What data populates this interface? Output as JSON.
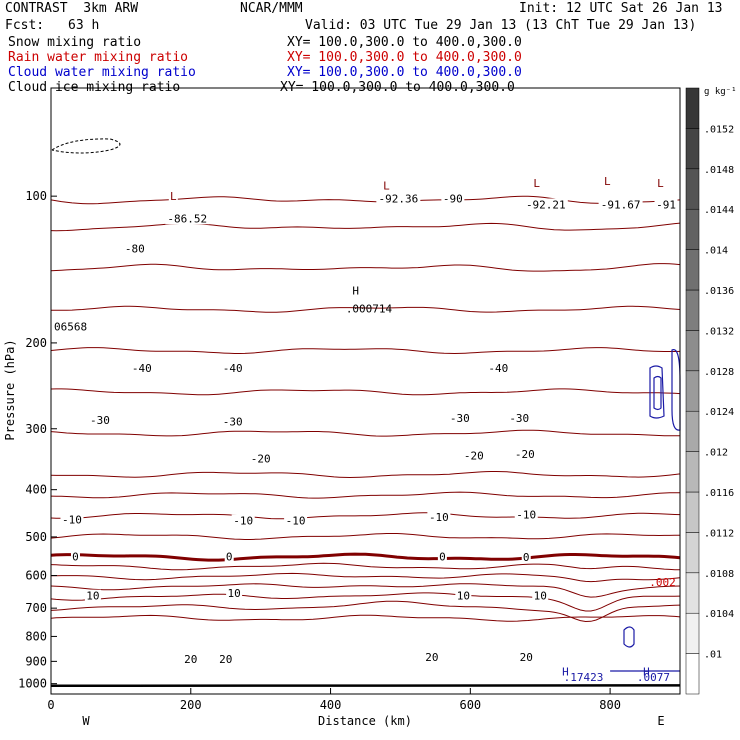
{
  "header": {
    "title_left": "CONTRAST  3km ARW",
    "title_center": "NCAR/MMM",
    "init": "Init: 12 UTC Sat 26 Jan 13",
    "fcst_label": "Fcst:",
    "fcst_value": "63 h",
    "valid": "Valid: 03 UTC Tue 29 Jan 13 (13 ChT Tue 29 Jan 13)"
  },
  "fields": [
    {
      "label": "Snow mixing ratio",
      "xy": "XY= 100.0,300.0 to 400.0,300.0",
      "color": "#000000"
    },
    {
      "label": "Rain water mixing ratio",
      "xy": "XY= 100.0,300.0 to 400.0,300.0",
      "color": "#cc0000"
    },
    {
      "label": "Cloud water mixing ratio",
      "xy": "XY= 100.0,300.0 to 400.0,300.0",
      "color": "#0000cc"
    },
    {
      "label": "Cloud ice mixing ratio",
      "xy": "XY= 100.0,300.0 to 400.0,300.0",
      "color": "#000000"
    }
  ],
  "colors": {
    "temperature_contour": "#800000",
    "freezing_line": "#800000",
    "cloud_water": "#1a1aa6",
    "ground": "#000000"
  },
  "chart_data": {
    "type": "line",
    "xlabel": "Distance (km)",
    "ylabel": "Pressure (hPa)",
    "xlim": [
      0,
      900
    ],
    "ylim": [
      1050,
      60
    ],
    "y_scale": "log",
    "x_ticks": [
      0,
      200,
      400,
      600,
      800
    ],
    "y_ticks": [
      100,
      200,
      300,
      400,
      500,
      600,
      700,
      800,
      900,
      1000
    ],
    "x_end_labels": {
      "left": "W",
      "right": "E"
    },
    "grid": false,
    "isotherm_levels_C": [
      -86.52,
      -80,
      -70,
      -60,
      -50,
      -40,
      -30,
      -20,
      -15,
      -10,
      -5,
      0,
      5,
      10,
      15,
      20,
      25,
      30
    ],
    "contour_labels": [
      {
        "text": "L",
        "x": 175,
        "p": 100
      },
      {
        "text": "-86.52",
        "x": 195,
        "p": 111
      },
      {
        "text": "-80",
        "x": 120,
        "p": 128
      },
      {
        "text": "L",
        "x": 480,
        "p": 95
      },
      {
        "text": "-92.36",
        "x": 497,
        "p": 101
      },
      {
        "text": "-90",
        "x": 575,
        "p": 101
      },
      {
        "text": "L",
        "x": 695,
        "p": 94
      },
      {
        "text": "-92.21",
        "x": 708,
        "p": 104
      },
      {
        "text": "L",
        "x": 796,
        "p": 93
      },
      {
        "text": "-91.67",
        "x": 815,
        "p": 104
      },
      {
        "text": "L",
        "x": 872,
        "p": 94
      },
      {
        "text": "-91",
        "x": 880,
        "p": 104
      },
      {
        "text": "-40",
        "x": 130,
        "p": 225
      },
      {
        "text": "-40",
        "x": 260,
        "p": 225
      },
      {
        "text": "-40",
        "x": 640,
        "p": 225
      },
      {
        "text": "-30",
        "x": 70,
        "p": 288
      },
      {
        "text": "-30",
        "x": 260,
        "p": 290
      },
      {
        "text": "-30",
        "x": 585,
        "p": 285
      },
      {
        "text": "-30",
        "x": 670,
        "p": 285
      },
      {
        "text": "-20",
        "x": 300,
        "p": 345
      },
      {
        "text": "-20",
        "x": 605,
        "p": 340
      },
      {
        "text": "-20",
        "x": 678,
        "p": 338
      },
      {
        "text": "-10",
        "x": 30,
        "p": 460
      },
      {
        "text": "-10",
        "x": 275,
        "p": 463
      },
      {
        "text": "-10",
        "x": 350,
        "p": 463
      },
      {
        "text": "-10",
        "x": 555,
        "p": 455
      },
      {
        "text": "-10",
        "x": 680,
        "p": 450
      },
      {
        "text": "0",
        "x": 35,
        "p": 548
      },
      {
        "text": "0",
        "x": 255,
        "p": 548
      },
      {
        "text": "0",
        "x": 560,
        "p": 548
      },
      {
        "text": "0",
        "x": 680,
        "p": 550
      },
      {
        "text": "10",
        "x": 60,
        "p": 660
      },
      {
        "text": "10",
        "x": 262,
        "p": 652
      },
      {
        "text": "10",
        "x": 590,
        "p": 660
      },
      {
        "text": "10",
        "x": 700,
        "p": 660
      },
      {
        "text": "20",
        "x": 200,
        "p": 889
      },
      {
        "text": "20",
        "x": 250,
        "p": 889
      },
      {
        "text": "20",
        "x": 545,
        "p": 881
      },
      {
        "text": "20",
        "x": 680,
        "p": 881
      }
    ],
    "extrema_labels": [
      {
        "text": "H",
        "x": 436,
        "p": 156
      },
      {
        "text": ".000714",
        "x": 455,
        "p": 170
      },
      {
        "text": "06568",
        "x": 28,
        "p": 185
      },
      {
        "text": "H",
        "x": 736,
        "p": 945
      },
      {
        "text": ".17423",
        "x": 762,
        "p": 970
      },
      {
        "text": "H",
        "x": 852,
        "p": 945
      },
      {
        "text": ".0077",
        "x": 862,
        "p": 970
      },
      {
        "text": ".002",
        "x": 875,
        "p": 618
      }
    ],
    "colorbar": {
      "unit": "g kg⁻¹",
      "ticks": [
        ".01",
        ".0104",
        ".0108",
        ".0112",
        ".0116",
        ".012",
        ".0124",
        ".0128",
        ".0132",
        ".0136",
        ".014",
        ".0144",
        ".0148",
        ".0152"
      ]
    }
  }
}
